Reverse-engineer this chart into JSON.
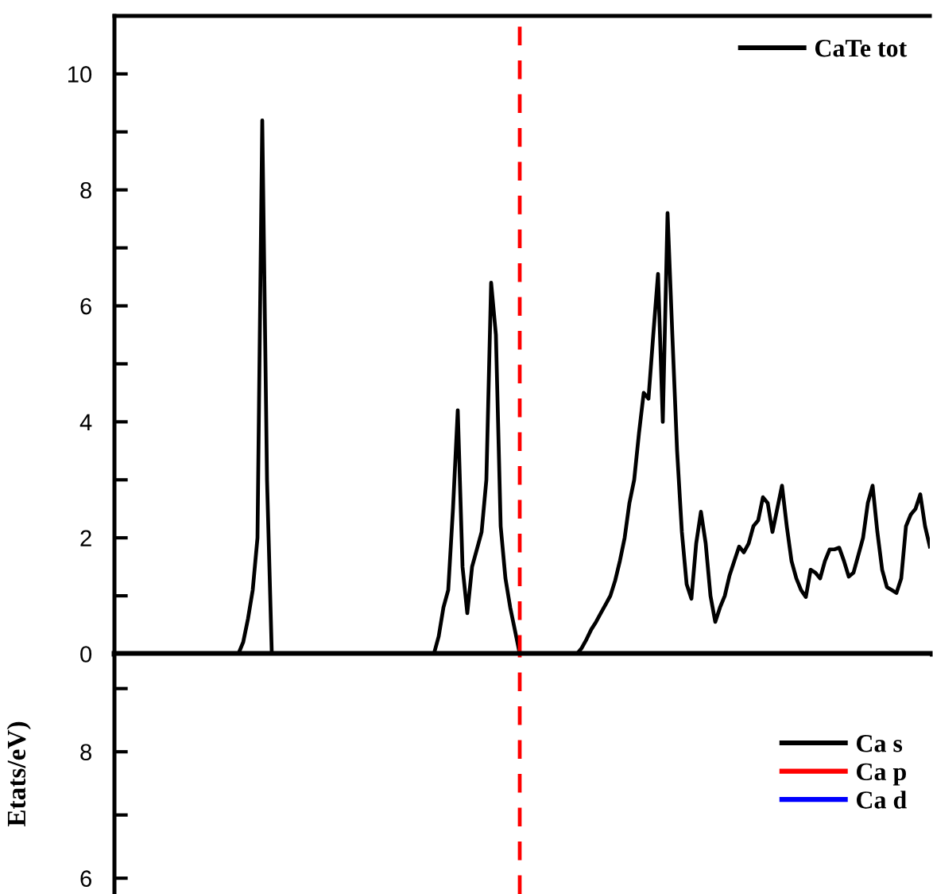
{
  "chart_data": [
    {
      "type": "line",
      "categories": [
        null,
        null,
        null,
        null,
        null,
        null,
        null,
        null,
        null,
        null,
        null,
        null,
        null,
        null,
        null,
        null,
        null,
        null,
        null,
        null,
        null,
        null,
        null,
        null,
        null,
        null,
        null,
        null,
        null,
        null,
        null,
        null,
        null,
        null,
        null,
        null,
        null,
        null,
        null,
        null,
        null,
        null,
        null,
        null,
        null,
        null,
        null,
        null,
        null,
        null,
        null,
        null,
        null,
        null,
        null,
        null,
        null,
        null,
        null,
        null,
        null,
        null,
        null,
        null,
        null,
        null,
        null,
        null,
        null,
        null,
        null,
        null,
        null,
        null,
        null,
        null,
        null,
        null,
        null,
        null,
        null,
        null,
        null,
        null,
        null,
        null,
        null,
        null,
        null,
        null,
        null,
        null,
        null,
        null,
        null,
        null,
        null,
        null,
        null,
        null,
        null,
        null,
        null,
        null,
        null,
        null,
        null,
        null,
        null,
        null,
        null,
        null,
        null,
        null,
        null,
        null,
        null,
        null,
        null,
        null,
        null,
        null,
        null,
        null,
        null,
        null,
        null,
        null,
        null,
        null,
        null,
        null,
        null,
        null,
        null,
        null,
        null,
        null,
        null,
        null,
        null,
        null,
        null,
        null,
        null,
        null,
        null,
        null,
        null,
        null,
        null,
        null,
        null,
        null,
        null,
        null,
        null,
        null,
        null,
        null,
        null,
        null,
        null,
        null,
        null,
        null,
        null,
        null,
        null,
        null,
        null,
        null
      ],
      "series": [
        {
          "name": "CaTe tot",
          "color": "#000000",
          "values": [
            0,
            0,
            0,
            0,
            0,
            0,
            0,
            0,
            0,
            0,
            0,
            0,
            0,
            0,
            0,
            0,
            0,
            0,
            0,
            0,
            0,
            0,
            0,
            0,
            0,
            0,
            0,
            0.2,
            0.6,
            1.1,
            2.0,
            9.2,
            3.0,
            0,
            0,
            0,
            0,
            0,
            0,
            0,
            0,
            0,
            0,
            0,
            0,
            0,
            0,
            0,
            0,
            0,
            0,
            0,
            0,
            0,
            0,
            0,
            0,
            0,
            0,
            0,
            0,
            0,
            0,
            0,
            0,
            0,
            0,
            0,
            0.3,
            0.8,
            1.1,
            2.5,
            4.2,
            1.5,
            0.7,
            1.5,
            1.8,
            2.1,
            3.0,
            6.4,
            5.5,
            2.2,
            1.3,
            0.8,
            0.4,
            0,
            0,
            0,
            0,
            0,
            0,
            0,
            0,
            0,
            0,
            0,
            0,
            0,
            0.1,
            0.25,
            0.42,
            0.55,
            0.7,
            0.85,
            1.0,
            1.26,
            1.6,
            2.0,
            2.6,
            3.0,
            3.8,
            4.5,
            4.4,
            5.5,
            6.55,
            4.0,
            7.6,
            5.5,
            3.5,
            2.1,
            1.2,
            0.95,
            1.9,
            2.45,
            1.9,
            1.0,
            0.55,
            0.8,
            1.0,
            1.35,
            1.6,
            1.85,
            1.75,
            1.9,
            2.2,
            2.3,
            2.7,
            2.6,
            2.1,
            2.5,
            2.9,
            2.2,
            1.6,
            1.3,
            1.1,
            0.98,
            1.45,
            1.4,
            1.3,
            1.6,
            1.8,
            1.8,
            1.83,
            1.6,
            1.33,
            1.4,
            1.7,
            2.0,
            2.6,
            2.9,
            2.1,
            1.45,
            1.15,
            1.1,
            1.05,
            1.3,
            2.2,
            2.4,
            2.5,
            2.75,
            2.2,
            1.85
          ]
        }
      ],
      "ylim": [
        0,
        11
      ],
      "yticks": [
        0,
        {
          "value": 1,
          "label": null
        },
        2,
        {
          "value": 3,
          "label": null
        },
        4,
        {
          "value": 5,
          "label": null
        },
        6,
        {
          "value": 7,
          "label": null
        },
        8,
        {
          "value": 9,
          "label": null
        },
        10
      ],
      "legend": "top right",
      "grid": false,
      "tick_labels": "y",
      "line_style": "solid"
    },
    {
      "type": "line",
      "ylabel": "Etats/eV)",
      "categories": [
        null,
        null,
        null,
        null,
        null,
        null,
        null,
        null,
        null,
        null,
        null,
        null,
        null,
        null,
        null,
        null,
        null,
        null,
        null,
        null,
        null,
        null,
        null,
        null,
        null,
        null,
        null,
        null,
        null,
        null,
        null,
        null,
        null,
        null,
        null,
        null,
        null,
        null,
        null,
        null,
        null,
        null,
        null,
        null,
        null,
        null,
        null,
        null,
        null,
        null,
        null,
        null,
        null,
        null,
        null,
        null,
        null,
        null,
        null,
        null,
        null,
        null,
        null,
        null,
        null,
        null,
        null,
        null,
        null,
        null,
        null,
        null,
        null,
        null,
        null,
        null,
        null,
        null,
        null,
        null,
        null,
        null,
        null,
        null,
        null,
        null,
        null,
        null,
        null,
        null,
        null,
        null,
        null,
        null,
        null,
        null,
        null,
        null,
        null,
        null,
        null,
        null,
        null,
        null,
        null,
        null,
        null,
        null,
        null,
        null,
        null,
        null,
        null,
        null,
        null,
        null,
        null,
        null,
        null,
        null,
        null,
        null,
        null,
        null,
        null,
        null,
        null,
        null,
        null,
        null,
        null,
        null,
        null,
        null,
        null,
        null,
        null,
        null,
        null,
        null,
        null,
        null,
        null,
        null,
        null,
        null,
        null,
        null,
        null,
        null,
        null,
        null,
        null,
        null,
        null,
        null,
        null,
        null,
        null,
        null,
        null,
        null,
        null,
        null,
        null,
        null,
        null,
        null,
        null,
        null,
        null,
        null
      ],
      "series": [
        {
          "name": "Ca s",
          "color": "#000000",
          "values": [
            null,
            null,
            null,
            null,
            null,
            null,
            null,
            null,
            null,
            null,
            null,
            null,
            null,
            null,
            null,
            null,
            null,
            null,
            null,
            null,
            null,
            null,
            null,
            null,
            null,
            null,
            null,
            null,
            null,
            null,
            null,
            null,
            null,
            null,
            null,
            null,
            null,
            null,
            null,
            null,
            null,
            null,
            null,
            null,
            null,
            null,
            null,
            null,
            null,
            null,
            null,
            null,
            null,
            null,
            null,
            null,
            null,
            null,
            null,
            null,
            null,
            null,
            null,
            null,
            null,
            null,
            null,
            null,
            null,
            null,
            null,
            null,
            null,
            null,
            null,
            null,
            null,
            null,
            null,
            null,
            null,
            null,
            null,
            null,
            null,
            null,
            null,
            null,
            null,
            null,
            null,
            null,
            null,
            null,
            null,
            null,
            null,
            null,
            null,
            null,
            null,
            null,
            null,
            null,
            null,
            null,
            null,
            null,
            null,
            null,
            null,
            null,
            null,
            null,
            null,
            null,
            null,
            null,
            null,
            null,
            null,
            null,
            null,
            null,
            null,
            null,
            null,
            null,
            null,
            null,
            null,
            null,
            null,
            null,
            null,
            null,
            null,
            null,
            null,
            null,
            null,
            null,
            null,
            null,
            null,
            null,
            null,
            null,
            null,
            null,
            null,
            null,
            null,
            null,
            null,
            null,
            null,
            null,
            null,
            null,
            null,
            null,
            null,
            null,
            null,
            null,
            null,
            null,
            null,
            null,
            null,
            null
          ]
        },
        {
          "name": "Ca p",
          "color": "#ff0000",
          "values": [
            null,
            null,
            null,
            null,
            null,
            null,
            null,
            null,
            null,
            null,
            null,
            null,
            null,
            null,
            null,
            null,
            null,
            null,
            null,
            null,
            null,
            null,
            null,
            null,
            null,
            null,
            null,
            null,
            null,
            null,
            null,
            null,
            null,
            null,
            null,
            null,
            null,
            null,
            null,
            null,
            null,
            null,
            null,
            null,
            null,
            null,
            null,
            null,
            null,
            null,
            null,
            null,
            null,
            null,
            null,
            null,
            null,
            null,
            null,
            null,
            null,
            null,
            null,
            null,
            null,
            null,
            null,
            null,
            null,
            null,
            null,
            null,
            null,
            null,
            null,
            null,
            null,
            null,
            null,
            null,
            null,
            null,
            null,
            null,
            null,
            null,
            null,
            null,
            null,
            null,
            null,
            null,
            null,
            null,
            null,
            null,
            null,
            null,
            null,
            null,
            null,
            null,
            null,
            null,
            null,
            null,
            null,
            null,
            null,
            null,
            null,
            null,
            null,
            null,
            null,
            null,
            null,
            null,
            null,
            null,
            null,
            null,
            null,
            null,
            null,
            null,
            null,
            null,
            null,
            null,
            null,
            null,
            null,
            null,
            null,
            null,
            null,
            null,
            null,
            null,
            null,
            null,
            null,
            null,
            null,
            null,
            null,
            null,
            null,
            null,
            null,
            null,
            null,
            null,
            null,
            null,
            null,
            null,
            null,
            null,
            null,
            null,
            null,
            null,
            null,
            null,
            null,
            null,
            null,
            null,
            null,
            null
          ]
        },
        {
          "name": "Ca d",
          "color": "#0000ff",
          "values": [
            null,
            null,
            null,
            null,
            null,
            null,
            null,
            null,
            null,
            null,
            null,
            null,
            null,
            null,
            null,
            null,
            null,
            null,
            null,
            null,
            null,
            null,
            null,
            null,
            null,
            null,
            null,
            null,
            null,
            null,
            null,
            null,
            null,
            null,
            null,
            null,
            null,
            null,
            null,
            null,
            null,
            null,
            null,
            null,
            null,
            null,
            null,
            null,
            null,
            null,
            null,
            null,
            null,
            null,
            null,
            null,
            null,
            null,
            null,
            null,
            null,
            null,
            null,
            null,
            null,
            null,
            null,
            null,
            null,
            null,
            null,
            null,
            null,
            null,
            null,
            null,
            null,
            null,
            null,
            null,
            null,
            null,
            null,
            null,
            null,
            null,
            null,
            null,
            null,
            null,
            null,
            null,
            null,
            null,
            null,
            null,
            null,
            null,
            null,
            null,
            null,
            null,
            null,
            null,
            null,
            null,
            null,
            null,
            null,
            null,
            null,
            null,
            null,
            null,
            null,
            null,
            null,
            null,
            null,
            null,
            null,
            null,
            null,
            null,
            null,
            null,
            null,
            null,
            null,
            null,
            null,
            null,
            null,
            null,
            null,
            null,
            null,
            null,
            null,
            null,
            null,
            null,
            null,
            null,
            null,
            null,
            null,
            null,
            null,
            null,
            null,
            null,
            null,
            null,
            null,
            null,
            null,
            null,
            null,
            null,
            null,
            null,
            null,
            null,
            null,
            null,
            null,
            null,
            null,
            null,
            null,
            null
          ]
        }
      ],
      "ylim": [
        5.75,
        9.55
      ],
      "yticks": [
        6,
        {
          "value": 7,
          "label": null
        },
        8,
        {
          "value": 9,
          "label": null
        }
      ],
      "legend": "right",
      "grid": false,
      "tick_labels": "y",
      "line_style": "solid"
    }
  ]
}
